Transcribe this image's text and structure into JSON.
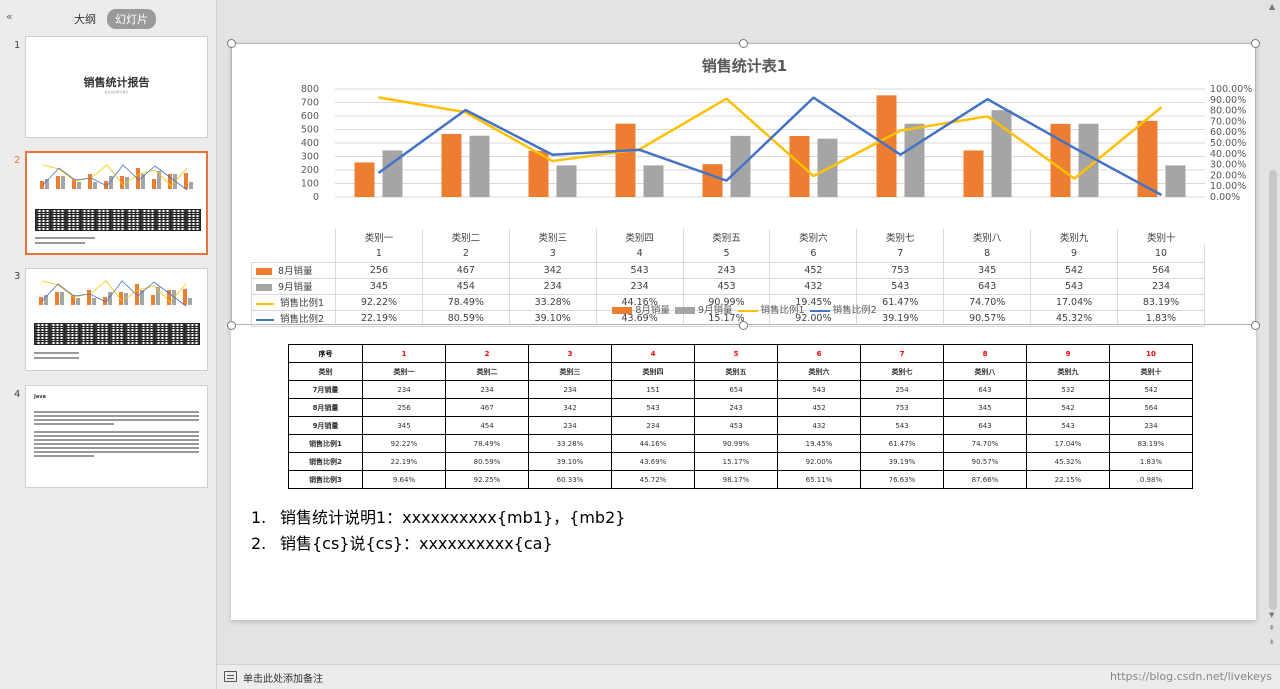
{
  "panel": {
    "collapse_icon": "«",
    "tab_outline": "大纲",
    "tab_slides": "幻灯片",
    "thumbnails": [
      {
        "number": "1",
        "title": "销售统计报告",
        "subtitle": "某企业的统计报表"
      },
      {
        "number": "2"
      },
      {
        "number": "3"
      },
      {
        "number": "4",
        "title": "Java"
      }
    ]
  },
  "chart_data": {
    "type": "bar",
    "title": "销售统计表1",
    "categories": [
      "类别一",
      "类别二",
      "类别三",
      "类别四",
      "类别五",
      "类别六",
      "类别七",
      "类别八",
      "类别九",
      "类别十"
    ],
    "index_labels": [
      "1",
      "2",
      "3",
      "4",
      "5",
      "6",
      "7",
      "8",
      "9",
      "10"
    ],
    "series": [
      {
        "name": "8月销量",
        "kind": "bar",
        "axis": "left",
        "color": "#ed7d31",
        "values": [
          256,
          467,
          342,
          543,
          243,
          452,
          753,
          345,
          542,
          564
        ],
        "labels": [
          "256",
          "467",
          "342",
          "543",
          "243",
          "452",
          "753",
          "345",
          "542",
          "564"
        ]
      },
      {
        "name": "9月销量",
        "kind": "bar",
        "axis": "left",
        "color": "#a5a5a5",
        "values": [
          345,
          454,
          234,
          234,
          453,
          432,
          543,
          643,
          543,
          234
        ],
        "labels": [
          "345",
          "454",
          "234",
          "234",
          "453",
          "432",
          "543",
          "643",
          "543",
          "234"
        ]
      },
      {
        "name": "销售比例1",
        "kind": "line",
        "axis": "right",
        "color": "#ffc000",
        "values": [
          92.22,
          78.49,
          33.28,
          44.16,
          90.99,
          19.45,
          61.47,
          74.7,
          17.04,
          83.19
        ],
        "labels": [
          "92.22%",
          "78.49%",
          "33.28%",
          "44.16%",
          "90.99%",
          "19.45%",
          "61.47%",
          "74.70%",
          "17.04%",
          "83.19%"
        ]
      },
      {
        "name": "销售比例2",
        "kind": "line",
        "axis": "right",
        "color": "#4472c4",
        "values": [
          22.19,
          80.59,
          39.1,
          43.69,
          15.17,
          92.0,
          39.19,
          90.57,
          45.32,
          1.83
        ],
        "labels": [
          "22.19%",
          "80.59%",
          "39.10%",
          "43.69%",
          "15.17%",
          "92.00%",
          "39.19%",
          "90.57%",
          "45.32%",
          "1.83%"
        ]
      }
    ],
    "y_left": {
      "min": 0,
      "max": 800,
      "ticks": [
        "0",
        "100",
        "200",
        "300",
        "400",
        "500",
        "600",
        "700",
        "800"
      ]
    },
    "y_right": {
      "min": 0,
      "max": 100,
      "ticks": [
        "0.00%",
        "10.00%",
        "20.00%",
        "30.00%",
        "40.00%",
        "50.00%",
        "60.00%",
        "70.00%",
        "80.00%",
        "90.00%",
        "100.00%"
      ]
    },
    "grid": true,
    "legend": "bottom"
  },
  "table": {
    "header": {
      "label": "序号",
      "cells": [
        "1",
        "2",
        "3",
        "4",
        "5",
        "6",
        "7",
        "8",
        "9",
        "10"
      ]
    },
    "rows": [
      {
        "label": "类别",
        "cells": [
          "类别一",
          "类别二",
          "类别三",
          "类别四",
          "类别五",
          "类别六",
          "类别七",
          "类别八",
          "类别九",
          "类别十"
        ]
      },
      {
        "label": "7月销量",
        "cells": [
          "234",
          "234",
          "234",
          "151",
          "654",
          "543",
          "254",
          "643",
          "532",
          "542"
        ]
      },
      {
        "label": "8月销量",
        "cells": [
          "256",
          "467",
          "342",
          "543",
          "243",
          "452",
          "753",
          "345",
          "542",
          "564"
        ]
      },
      {
        "label": "9月销量",
        "cells": [
          "345",
          "454",
          "234",
          "234",
          "453",
          "432",
          "543",
          "643",
          "543",
          "234"
        ]
      },
      {
        "label": "销售比例1",
        "cells": [
          "92.22%",
          "78.49%",
          "33.28%",
          "44.16%",
          "90.99%",
          "19.45%",
          "61.47%",
          "74.70%",
          "17.04%",
          "83.19%"
        ]
      },
      {
        "label": "销售比例2",
        "cells": [
          "22.19%",
          "80.59%",
          "39.10%",
          "43.69%",
          "15.17%",
          "92.00%",
          "39.19%",
          "90.57%",
          "45.32%",
          "1.83%"
        ]
      },
      {
        "label": "销售比例3",
        "cells": [
          "9.64%",
          "92.25%",
          "60.33%",
          "45.72%",
          "98.17%",
          "65.11%",
          "76.63%",
          "87.66%",
          "22.15%",
          "0.98%"
        ]
      }
    ]
  },
  "notes_list": [
    {
      "num": "1.",
      "text": "销售统计说明1：xxxxxxxxxx{mb1}，{mb2}"
    },
    {
      "num": "2.",
      "text": "销售{cs}说{cs}：xxxxxxxxxx{ca}"
    }
  ],
  "notes_bar": {
    "text": "单击此处添加备注"
  },
  "watermark": "https://blog.csdn.net/livekeys"
}
